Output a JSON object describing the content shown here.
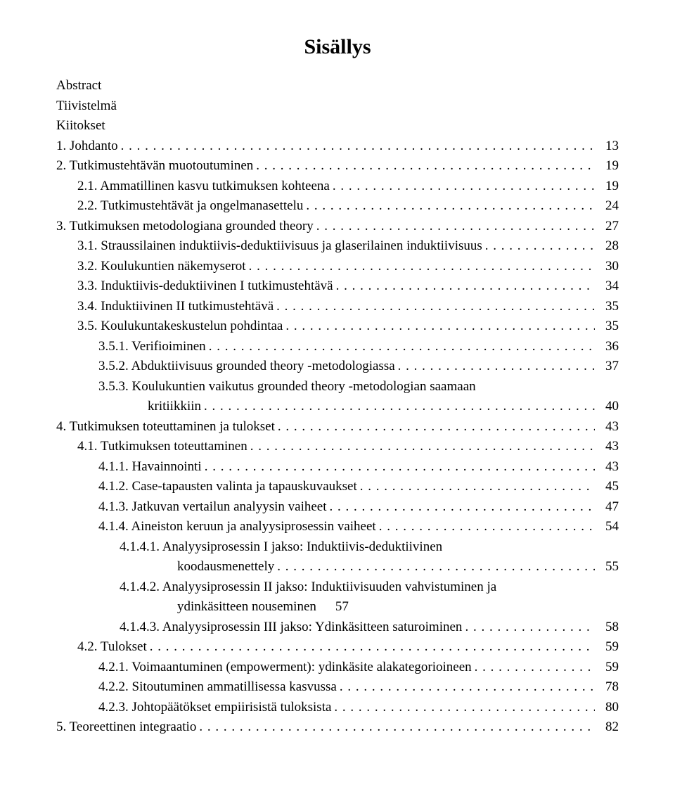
{
  "title": "Sisällys",
  "front_matter": [
    "Abstract",
    "Tiivistelmä",
    "Kiitokset"
  ],
  "entries": [
    {
      "indent": 0,
      "label": "1.   Johdanto",
      "page": "13"
    },
    {
      "indent": 0,
      "label": "2.   Tutkimustehtävän muotoutuminen",
      "page": "19"
    },
    {
      "indent": 1,
      "label": "2.1. Ammatillinen kasvu tutkimuksen kohteena",
      "page": "19"
    },
    {
      "indent": 1,
      "label": "2.2. Tutkimustehtävät ja ongelmanasettelu",
      "page": "24"
    },
    {
      "indent": 0,
      "label": "3.   Tutkimuksen metodologiana grounded theory",
      "page": "27"
    },
    {
      "indent": 1,
      "label": "3.1. Straussilainen induktiivis-deduktiivisuus ja glaserilainen induktiivisuus",
      "page": "28"
    },
    {
      "indent": 1,
      "label": "3.2. Koulukuntien näkemyserot",
      "page": "30"
    },
    {
      "indent": 1,
      "label": "3.3. Induktiivis-deduktiivinen I tutkimustehtävä",
      "page": "34"
    },
    {
      "indent": 1,
      "label": "3.4. Induktiivinen II tutkimustehtävä",
      "page": "35"
    },
    {
      "indent": 1,
      "label": "3.5. Koulukuntakeskustelun pohdintaa",
      "page": "35"
    },
    {
      "indent": 2,
      "label": "3.5.1.   Verifioiminen",
      "page": "36"
    },
    {
      "indent": 2,
      "label": "3.5.2.   Abduktiivisuus grounded theory -metodologiassa",
      "page": "37"
    },
    {
      "indent": 2,
      "label": "3.5.3.   Koulukuntien vaikutus grounded theory -metodologian saamaan",
      "cont": true
    },
    {
      "indent": 2,
      "cont_label": "kritiikkiin",
      "cont_pad": 70,
      "page": "40"
    },
    {
      "indent": 0,
      "label": "4.   Tutkimuksen toteuttaminen ja tulokset",
      "page": "43"
    },
    {
      "indent": 1,
      "label": "4.1. Tutkimuksen toteuttaminen",
      "page": "43"
    },
    {
      "indent": 2,
      "label": "4.1.1.   Havainnointi",
      "page": "43"
    },
    {
      "indent": 2,
      "label": "4.1.2.   Case-tapausten valinta ja tapauskuvaukset",
      "page": "45"
    },
    {
      "indent": 2,
      "label": "4.1.3.   Jatkuvan vertailun analyysin vaiheet",
      "page": "47"
    },
    {
      "indent": 2,
      "label": "4.1.4.   Aineiston keruun ja analyysiprosessin vaiheet",
      "page": "54"
    },
    {
      "indent": 3,
      "label": "4.1.4.1.   Analyysiprosessin I jakso: Induktiivis-deduktiivinen",
      "cont": true
    },
    {
      "indent": 3,
      "cont_label": "koodausmenettely",
      "cont_pad": 82,
      "page": "55"
    },
    {
      "indent": 3,
      "label": "4.1.4.2.   Analyysiprosessin II jakso: Induktiivisuuden vahvistuminen ja",
      "cont": true
    },
    {
      "indent": 3,
      "cont_label": "ydinkäsitteen nouseminen",
      "cont_pad": 82,
      "page": "57",
      "nodots": true
    },
    {
      "indent": 3,
      "label": "4.1.4.3.   Analyysiprosessin III jakso: Ydinkäsitteen saturoiminen",
      "page": "58"
    },
    {
      "indent": 1,
      "label": "4.2. Tulokset",
      "page": "59"
    },
    {
      "indent": 2,
      "label": "4.2.1.   Voimaantuminen (empowerment): ydinkäsite alakategorioineen",
      "page": "59"
    },
    {
      "indent": 2,
      "label": "4.2.2.   Sitoutuminen ammatillisessa kasvussa",
      "page": "78"
    },
    {
      "indent": 2,
      "label": "4.2.3.   Johtopäätökset empiirisistä tuloksista",
      "page": "80"
    },
    {
      "indent": 0,
      "label": "5.   Teoreettinen integraatio",
      "page": "82"
    }
  ],
  "colors": {
    "background": "#ffffff",
    "text": "#000000"
  },
  "fonts": {
    "family": "Times New Roman",
    "title_size_pt": 22,
    "body_size_pt": 14
  }
}
